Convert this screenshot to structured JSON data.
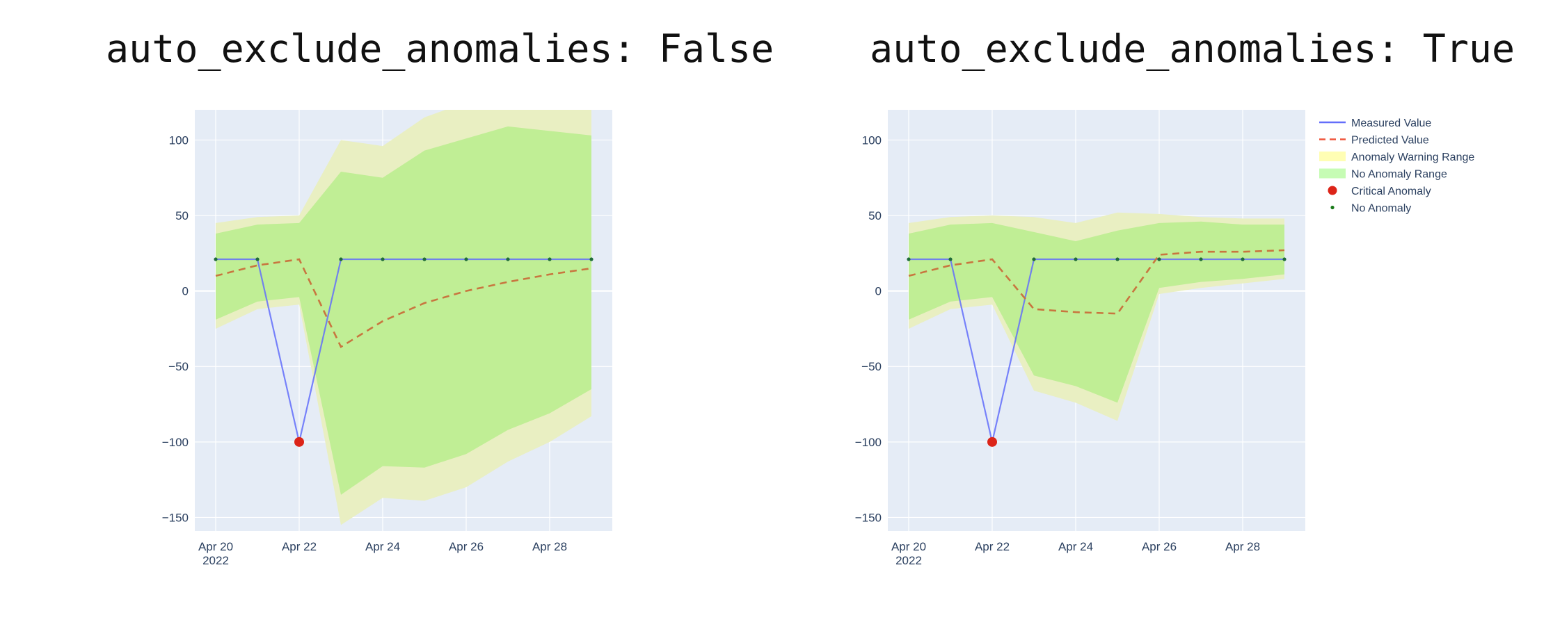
{
  "chart_data": [
    {
      "type": "line",
      "title": "auto_exclude_anomalies: False",
      "xlabel": "",
      "ylabel": "",
      "x": [
        "2022-04-20",
        "2022-04-21",
        "2022-04-22",
        "2022-04-23",
        "2022-04-24",
        "2022-04-25",
        "2022-04-26",
        "2022-04-27",
        "2022-04-28",
        "2022-04-29"
      ],
      "xlim": [
        "2022-04-19 12:00",
        "2022-04-29 12:00"
      ],
      "ylim": [
        -159,
        120
      ],
      "yticks": [
        100,
        50,
        0,
        -50,
        -100,
        -150
      ],
      "ytick_labels": [
        "100",
        "50",
        "0",
        "−50",
        "−100",
        "−150"
      ],
      "xticks": [
        "2022-04-20",
        "2022-04-22",
        "2022-04-24",
        "2022-04-26",
        "2022-04-28"
      ],
      "xtick_labels": [
        "Apr 20",
        "Apr 22",
        "Apr 24",
        "Apr 26",
        "Apr 28"
      ],
      "xtick_year": "2022",
      "grid": true,
      "series": [
        {
          "name": "Measured Value",
          "values": [
            21,
            21,
            -100,
            21,
            21,
            21,
            21,
            21,
            21,
            21
          ]
        },
        {
          "name": "Predicted Value",
          "values": [
            10,
            17,
            21,
            -37,
            -20,
            -8,
            0,
            6,
            11,
            15
          ]
        },
        {
          "name": "Anomaly Warning Range",
          "upper": [
            45,
            49,
            50,
            100,
            96,
            115,
            125,
            130,
            128,
            125
          ],
          "lower": [
            -25,
            -12,
            -9,
            -155,
            -137,
            -139,
            -130,
            -113,
            -100,
            -83
          ]
        },
        {
          "name": "No Anomaly Range",
          "upper": [
            38,
            44,
            45,
            79,
            75,
            93,
            101,
            109,
            106,
            103
          ],
          "lower": [
            -19,
            -7,
            -4,
            -135,
            -116,
            -117,
            -108,
            -92,
            -81,
            -65
          ]
        },
        {
          "name": "Critical Anomaly",
          "points": [
            {
              "x": "2022-04-22",
              "y": -100
            }
          ]
        },
        {
          "name": "No Anomaly",
          "points": [
            {
              "x": "2022-04-20",
              "y": 21
            },
            {
              "x": "2022-04-21",
              "y": 21
            },
            {
              "x": "2022-04-23",
              "y": 21
            },
            {
              "x": "2022-04-24",
              "y": 21
            },
            {
              "x": "2022-04-25",
              "y": 21
            },
            {
              "x": "2022-04-26",
              "y": 21
            },
            {
              "x": "2022-04-27",
              "y": 21
            },
            {
              "x": "2022-04-28",
              "y": 21
            },
            {
              "x": "2022-04-29",
              "y": 21
            }
          ]
        }
      ]
    },
    {
      "type": "line",
      "title": "auto_exclude_anomalies: True",
      "xlabel": "",
      "ylabel": "",
      "x": [
        "2022-04-20",
        "2022-04-21",
        "2022-04-22",
        "2022-04-23",
        "2022-04-24",
        "2022-04-25",
        "2022-04-26",
        "2022-04-27",
        "2022-04-28",
        "2022-04-29"
      ],
      "xlim": [
        "2022-04-19 12:00",
        "2022-04-29 12:00"
      ],
      "ylim": [
        -159,
        120
      ],
      "yticks": [
        100,
        50,
        0,
        -50,
        -100,
        -150
      ],
      "ytick_labels": [
        "100",
        "50",
        "0",
        "−50",
        "−100",
        "−150"
      ],
      "xticks": [
        "2022-04-20",
        "2022-04-22",
        "2022-04-24",
        "2022-04-26",
        "2022-04-28"
      ],
      "xtick_labels": [
        "Apr 20",
        "Apr 22",
        "Apr 24",
        "Apr 26",
        "Apr 28"
      ],
      "xtick_year": "2022",
      "grid": true,
      "legend_position": "right",
      "series": [
        {
          "name": "Measured Value",
          "values": [
            21,
            21,
            -100,
            21,
            21,
            21,
            21,
            21,
            21,
            21
          ]
        },
        {
          "name": "Predicted Value",
          "values": [
            10,
            17,
            21,
            -12,
            -14,
            -15,
            24,
            26,
            26,
            27
          ]
        },
        {
          "name": "Anomaly Warning Range",
          "upper": [
            45,
            49,
            50,
            49,
            45,
            52,
            51,
            49,
            48,
            48
          ],
          "lower": [
            -25,
            -12,
            -9,
            -66,
            -74,
            -86,
            -2,
            2,
            5,
            8
          ]
        },
        {
          "name": "No Anomaly Range",
          "upper": [
            38,
            44,
            45,
            39,
            33,
            40,
            45,
            46,
            44,
            44
          ],
          "lower": [
            -19,
            -7,
            -4,
            -56,
            -63,
            -74,
            2,
            6,
            8,
            11
          ]
        },
        {
          "name": "Critical Anomaly",
          "points": [
            {
              "x": "2022-04-22",
              "y": -100
            }
          ]
        },
        {
          "name": "No Anomaly",
          "points": [
            {
              "x": "2022-04-20",
              "y": 21
            },
            {
              "x": "2022-04-21",
              "y": 21
            },
            {
              "x": "2022-04-23",
              "y": 21
            },
            {
              "x": "2022-04-24",
              "y": 21
            },
            {
              "x": "2022-04-25",
              "y": 21
            },
            {
              "x": "2022-04-26",
              "y": 21
            },
            {
              "x": "2022-04-27",
              "y": 21
            },
            {
              "x": "2022-04-28",
              "y": 21
            },
            {
              "x": "2022-04-29",
              "y": 21
            }
          ]
        }
      ]
    }
  ],
  "legend": {
    "items": [
      {
        "label": "Measured Value",
        "kind": "line",
        "color": "#636efa"
      },
      {
        "label": "Predicted Value",
        "kind": "dash",
        "color": "#ef553b"
      },
      {
        "label": "Anomaly Warning Range",
        "kind": "fill",
        "color": "#fffeb4"
      },
      {
        "label": "No Anomaly Range",
        "kind": "fill",
        "color": "#c6fcb4"
      },
      {
        "label": "Critical Anomaly",
        "kind": "marker-large",
        "color": "#dc2418"
      },
      {
        "label": "No Anomaly",
        "kind": "marker-small",
        "color": "#1a7a1a"
      }
    ]
  },
  "colors": {
    "plot_background": "#e5ecf6",
    "grid": "#ffffff",
    "measured": "#636efa",
    "predicted": "#c8763f",
    "warning_fill": "#e9efc2",
    "no_anomaly_fill": "#c0ee95",
    "critical": "#dc2418",
    "no_anomaly_marker": "#1f6b3a",
    "tick_text": "#2a3f5f"
  }
}
